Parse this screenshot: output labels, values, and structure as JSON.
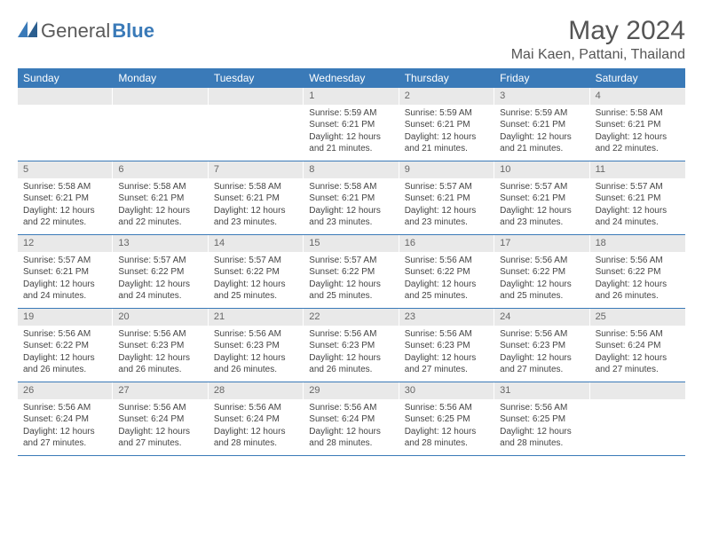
{
  "brand": {
    "general": "General",
    "blue": "Blue"
  },
  "title": "May 2024",
  "location": "Mai Kaen, Pattani, Thailand",
  "colors": {
    "header_bg": "#3a7ab8",
    "header_text": "#ffffff",
    "daynum_bg": "#e9e9e9",
    "border": "#3a7ab8",
    "body_text": "#444444",
    "title_text": "#555555"
  },
  "typography": {
    "title_fontsize": 30,
    "location_fontsize": 16,
    "dayhead_fontsize": 12,
    "cell_fontsize": 10
  },
  "day_labels": [
    "Sunday",
    "Monday",
    "Tuesday",
    "Wednesday",
    "Thursday",
    "Friday",
    "Saturday"
  ],
  "weeks": [
    [
      {
        "n": "",
        "sr": "",
        "ss": "",
        "dl": ""
      },
      {
        "n": "",
        "sr": "",
        "ss": "",
        "dl": ""
      },
      {
        "n": "",
        "sr": "",
        "ss": "",
        "dl": ""
      },
      {
        "n": "1",
        "sr": "Sunrise: 5:59 AM",
        "ss": "Sunset: 6:21 PM",
        "dl": "Daylight: 12 hours and 21 minutes."
      },
      {
        "n": "2",
        "sr": "Sunrise: 5:59 AM",
        "ss": "Sunset: 6:21 PM",
        "dl": "Daylight: 12 hours and 21 minutes."
      },
      {
        "n": "3",
        "sr": "Sunrise: 5:59 AM",
        "ss": "Sunset: 6:21 PM",
        "dl": "Daylight: 12 hours and 21 minutes."
      },
      {
        "n": "4",
        "sr": "Sunrise: 5:58 AM",
        "ss": "Sunset: 6:21 PM",
        "dl": "Daylight: 12 hours and 22 minutes."
      }
    ],
    [
      {
        "n": "5",
        "sr": "Sunrise: 5:58 AM",
        "ss": "Sunset: 6:21 PM",
        "dl": "Daylight: 12 hours and 22 minutes."
      },
      {
        "n": "6",
        "sr": "Sunrise: 5:58 AM",
        "ss": "Sunset: 6:21 PM",
        "dl": "Daylight: 12 hours and 22 minutes."
      },
      {
        "n": "7",
        "sr": "Sunrise: 5:58 AM",
        "ss": "Sunset: 6:21 PM",
        "dl": "Daylight: 12 hours and 23 minutes."
      },
      {
        "n": "8",
        "sr": "Sunrise: 5:58 AM",
        "ss": "Sunset: 6:21 PM",
        "dl": "Daylight: 12 hours and 23 minutes."
      },
      {
        "n": "9",
        "sr": "Sunrise: 5:57 AM",
        "ss": "Sunset: 6:21 PM",
        "dl": "Daylight: 12 hours and 23 minutes."
      },
      {
        "n": "10",
        "sr": "Sunrise: 5:57 AM",
        "ss": "Sunset: 6:21 PM",
        "dl": "Daylight: 12 hours and 23 minutes."
      },
      {
        "n": "11",
        "sr": "Sunrise: 5:57 AM",
        "ss": "Sunset: 6:21 PM",
        "dl": "Daylight: 12 hours and 24 minutes."
      }
    ],
    [
      {
        "n": "12",
        "sr": "Sunrise: 5:57 AM",
        "ss": "Sunset: 6:21 PM",
        "dl": "Daylight: 12 hours and 24 minutes."
      },
      {
        "n": "13",
        "sr": "Sunrise: 5:57 AM",
        "ss": "Sunset: 6:22 PM",
        "dl": "Daylight: 12 hours and 24 minutes."
      },
      {
        "n": "14",
        "sr": "Sunrise: 5:57 AM",
        "ss": "Sunset: 6:22 PM",
        "dl": "Daylight: 12 hours and 25 minutes."
      },
      {
        "n": "15",
        "sr": "Sunrise: 5:57 AM",
        "ss": "Sunset: 6:22 PM",
        "dl": "Daylight: 12 hours and 25 minutes."
      },
      {
        "n": "16",
        "sr": "Sunrise: 5:56 AM",
        "ss": "Sunset: 6:22 PM",
        "dl": "Daylight: 12 hours and 25 minutes."
      },
      {
        "n": "17",
        "sr": "Sunrise: 5:56 AM",
        "ss": "Sunset: 6:22 PM",
        "dl": "Daylight: 12 hours and 25 minutes."
      },
      {
        "n": "18",
        "sr": "Sunrise: 5:56 AM",
        "ss": "Sunset: 6:22 PM",
        "dl": "Daylight: 12 hours and 26 minutes."
      }
    ],
    [
      {
        "n": "19",
        "sr": "Sunrise: 5:56 AM",
        "ss": "Sunset: 6:22 PM",
        "dl": "Daylight: 12 hours and 26 minutes."
      },
      {
        "n": "20",
        "sr": "Sunrise: 5:56 AM",
        "ss": "Sunset: 6:23 PM",
        "dl": "Daylight: 12 hours and 26 minutes."
      },
      {
        "n": "21",
        "sr": "Sunrise: 5:56 AM",
        "ss": "Sunset: 6:23 PM",
        "dl": "Daylight: 12 hours and 26 minutes."
      },
      {
        "n": "22",
        "sr": "Sunrise: 5:56 AM",
        "ss": "Sunset: 6:23 PM",
        "dl": "Daylight: 12 hours and 26 minutes."
      },
      {
        "n": "23",
        "sr": "Sunrise: 5:56 AM",
        "ss": "Sunset: 6:23 PM",
        "dl": "Daylight: 12 hours and 27 minutes."
      },
      {
        "n": "24",
        "sr": "Sunrise: 5:56 AM",
        "ss": "Sunset: 6:23 PM",
        "dl": "Daylight: 12 hours and 27 minutes."
      },
      {
        "n": "25",
        "sr": "Sunrise: 5:56 AM",
        "ss": "Sunset: 6:24 PM",
        "dl": "Daylight: 12 hours and 27 minutes."
      }
    ],
    [
      {
        "n": "26",
        "sr": "Sunrise: 5:56 AM",
        "ss": "Sunset: 6:24 PM",
        "dl": "Daylight: 12 hours and 27 minutes."
      },
      {
        "n": "27",
        "sr": "Sunrise: 5:56 AM",
        "ss": "Sunset: 6:24 PM",
        "dl": "Daylight: 12 hours and 27 minutes."
      },
      {
        "n": "28",
        "sr": "Sunrise: 5:56 AM",
        "ss": "Sunset: 6:24 PM",
        "dl": "Daylight: 12 hours and 28 minutes."
      },
      {
        "n": "29",
        "sr": "Sunrise: 5:56 AM",
        "ss": "Sunset: 6:24 PM",
        "dl": "Daylight: 12 hours and 28 minutes."
      },
      {
        "n": "30",
        "sr": "Sunrise: 5:56 AM",
        "ss": "Sunset: 6:25 PM",
        "dl": "Daylight: 12 hours and 28 minutes."
      },
      {
        "n": "31",
        "sr": "Sunrise: 5:56 AM",
        "ss": "Sunset: 6:25 PM",
        "dl": "Daylight: 12 hours and 28 minutes."
      },
      {
        "n": "",
        "sr": "",
        "ss": "",
        "dl": ""
      }
    ]
  ]
}
